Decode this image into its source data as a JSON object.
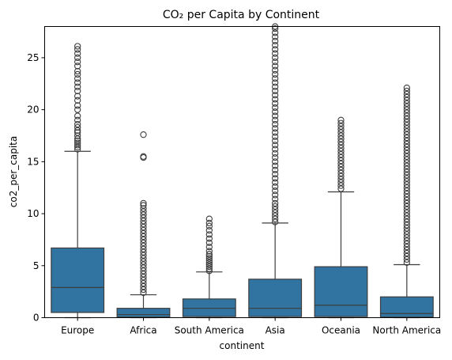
{
  "chart_data": {
    "type": "box",
    "title": "CO₂ per Capita by Continent",
    "xlabel": "continent",
    "ylabel": "co2_per_capita",
    "ylim": [
      0,
      28
    ],
    "yticks": [
      0,
      5,
      10,
      15,
      20,
      25
    ],
    "grid": false,
    "color": "#3274a1",
    "line_color": "#3d3d3d",
    "categories": [
      "Europe",
      "Africa",
      "South America",
      "Asia",
      "Oceania",
      "North America"
    ],
    "boxes": [
      {
        "category": "Europe",
        "whisker_low": 0.0,
        "q1": 0.5,
        "median": 2.9,
        "q3": 6.7,
        "whisker_high": 16.0,
        "outliers": [
          16.2,
          16.4,
          16.6,
          16.8,
          17.0,
          17.2,
          17.5,
          17.8,
          18.0,
          18.3,
          18.6,
          19.0,
          19.4,
          20.0,
          20.4,
          20.9,
          21.3,
          21.8,
          22.2,
          22.6,
          23.0,
          23.4,
          23.7,
          24.2,
          24.6,
          25.0,
          25.4,
          25.8,
          26.1
        ]
      },
      {
        "category": "Africa",
        "whisker_low": 0.0,
        "q1": 0.05,
        "median": 0.3,
        "q3": 0.9,
        "whisker_high": 2.2,
        "outliers": [
          2.4,
          2.7,
          3.0,
          3.3,
          3.6,
          3.9,
          4.2,
          4.5,
          4.8,
          5.1,
          5.4,
          5.7,
          6.0,
          6.3,
          6.6,
          6.9,
          7.2,
          7.5,
          7.8,
          8.1,
          8.4,
          8.7,
          9.0,
          9.3,
          9.6,
          9.9,
          10.2,
          10.5,
          10.8,
          11.0,
          15.4,
          15.5,
          17.6
        ]
      },
      {
        "category": "South America",
        "whisker_low": 0.0,
        "q1": 0.1,
        "median": 0.9,
        "q3": 1.8,
        "whisker_high": 4.4,
        "outliers": [
          4.5,
          4.7,
          4.9,
          5.1,
          5.3,
          5.5,
          5.7,
          5.9,
          6.1,
          6.4,
          6.8,
          7.2,
          7.6,
          8.0,
          8.4,
          8.8,
          9.1,
          9.5
        ]
      },
      {
        "category": "Asia",
        "whisker_low": 0.0,
        "q1": 0.1,
        "median": 0.9,
        "q3": 3.7,
        "whisker_high": 9.1,
        "outliers": [
          9.2,
          9.5,
          9.8,
          10.1,
          10.4,
          10.7,
          11.0,
          11.4,
          11.8,
          12.2,
          12.6,
          13.0,
          13.4,
          13.8,
          14.2,
          14.6,
          15.0,
          15.4,
          15.8,
          16.2,
          16.6,
          17.0,
          17.4,
          17.8,
          18.2,
          18.6,
          19.0,
          19.4,
          19.8,
          20.2,
          20.6,
          21.0,
          21.4,
          21.8,
          22.2,
          22.6,
          23.0,
          23.4,
          23.8,
          24.2,
          24.6,
          25.0,
          25.4,
          25.8,
          26.2,
          26.6,
          27.0,
          27.4,
          27.8,
          28.0
        ]
      },
      {
        "category": "Oceania",
        "whisker_low": 0.0,
        "q1": 0.1,
        "median": 1.2,
        "q3": 4.9,
        "whisker_high": 12.1,
        "outliers": [
          12.4,
          12.7,
          13.0,
          13.3,
          13.6,
          13.9,
          14.2,
          14.5,
          14.8,
          15.1,
          15.4,
          15.7,
          16.0,
          16.3,
          16.6,
          16.9,
          17.2,
          17.5,
          17.8,
          18.1,
          18.4,
          18.7,
          19.0
        ]
      },
      {
        "category": "North America",
        "whisker_low": 0.0,
        "q1": 0.05,
        "median": 0.4,
        "q3": 2.0,
        "whisker_high": 5.1,
        "outliers": [
          5.3,
          5.6,
          5.9,
          6.2,
          6.5,
          6.8,
          7.1,
          7.4,
          7.7,
          8.0,
          8.3,
          8.6,
          8.9,
          9.2,
          9.5,
          9.8,
          10.1,
          10.4,
          10.7,
          11.0,
          11.3,
          11.6,
          11.9,
          12.2,
          12.5,
          12.8,
          13.1,
          13.4,
          13.7,
          14.0,
          14.3,
          14.6,
          14.9,
          15.2,
          15.5,
          15.8,
          16.1,
          16.4,
          16.7,
          17.0,
          17.3,
          17.6,
          17.9,
          18.2,
          18.5,
          18.8,
          19.1,
          19.4,
          19.7,
          20.0,
          20.3,
          20.6,
          20.9,
          21.2,
          21.5,
          21.8,
          22.1
        ]
      }
    ]
  }
}
